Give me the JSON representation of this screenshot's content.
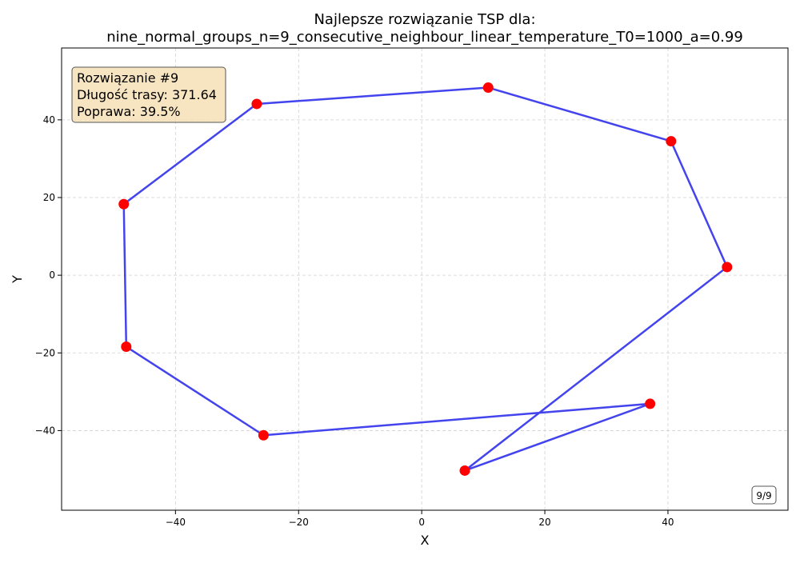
{
  "chart_data": {
    "type": "line",
    "title_line1": "Najlepsze rozwiązanie TSP dla:",
    "title_line2": "nine_normal_groups_n=9_consecutive_neighbour_linear_temperature_T0=1000_a=0.99",
    "xlabel": "X",
    "ylabel": "Y",
    "xlim": [
      -58.5,
      59.5
    ],
    "ylim": [
      -60.5,
      58.5
    ],
    "xticks": [
      -40,
      -20,
      0,
      20,
      40
    ],
    "yticks": [
      -40,
      -20,
      0,
      20,
      40
    ],
    "grid": true,
    "route": [
      {
        "x": 10.8,
        "y": 48.3
      },
      {
        "x": 40.5,
        "y": 34.5
      },
      {
        "x": 49.6,
        "y": 2.1
      },
      {
        "x": 7.0,
        "y": -50.3
      },
      {
        "x": 37.1,
        "y": -33.1
      },
      {
        "x": -25.7,
        "y": -41.2
      },
      {
        "x": -48.0,
        "y": -18.4
      },
      {
        "x": -48.4,
        "y": 18.3
      },
      {
        "x": -26.8,
        "y": 44.1
      },
      {
        "x": 10.8,
        "y": 48.3
      }
    ],
    "line_color": "#4444ee",
    "point_color": "#ff0000",
    "info_box": {
      "line1": "Rozwiązanie #9",
      "line2": "Długość trasy: 371.64",
      "line3": "Poprawa: 39.5%"
    },
    "counter": "9/9"
  }
}
